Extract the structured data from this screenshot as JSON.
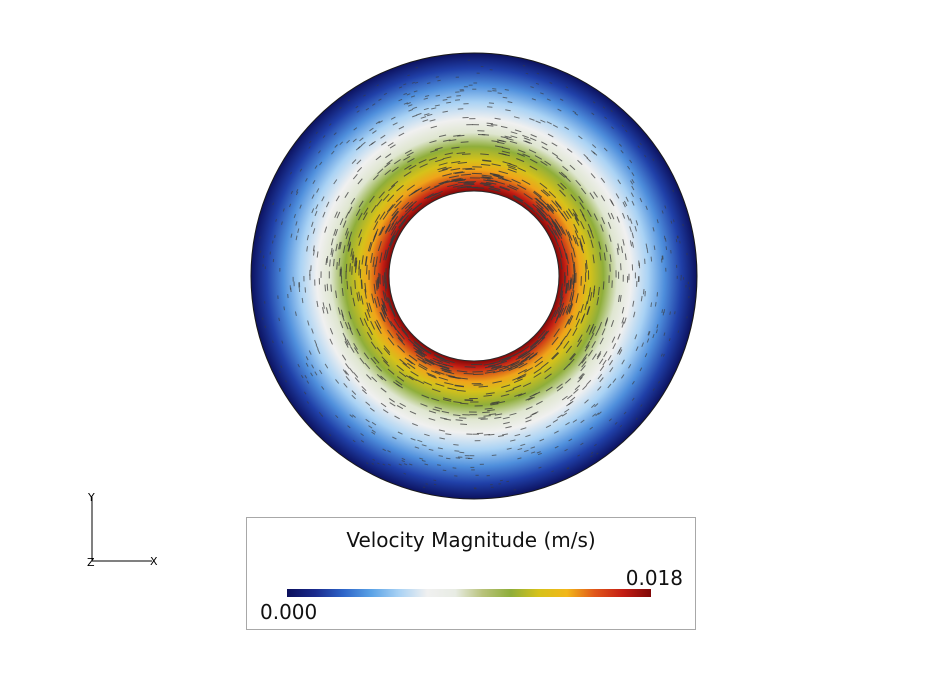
{
  "legend": {
    "title": "Velocity Magnitude (m/s)",
    "min_label": "0.000",
    "max_label": "0.018",
    "colormap": [
      "#0b0f5b",
      "#1a2a8c",
      "#2d64c8",
      "#5aa2e6",
      "#a9d2f4",
      "#f0f0f0",
      "#e8ece4",
      "#b8c27a",
      "#8fae3a",
      "#d6c21a",
      "#f2b71a",
      "#e0561a",
      "#c41e14",
      "#800808"
    ]
  },
  "axes": {
    "x_label": "X",
    "y_label": "Y",
    "z_label": "Z"
  },
  "field": {
    "description_shape": "annulus",
    "inner_colors": [
      "#800808",
      "#c41e14",
      "#f0a41a",
      "#d6c21a",
      "#8fae3a",
      "#dfe6d0",
      "#f0f0f0",
      "#a9d2f4",
      "#4f8fdc",
      "#2040a8",
      "#0b0f5b"
    ],
    "arrow_color": "#3a3a3a"
  }
}
